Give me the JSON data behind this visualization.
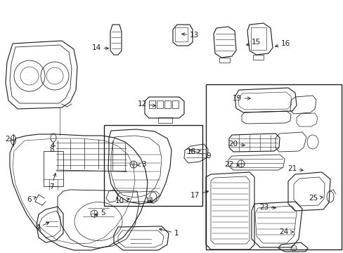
{
  "background_color": "#ffffff",
  "line_color": "#1a1a1a",
  "figsize": [
    4.89,
    3.6
  ],
  "dpi": 100,
  "labels": {
    "1": [
      248,
      332,
      223,
      325,
      "left"
    ],
    "2": [
      14,
      198,
      22,
      200,
      "right"
    ],
    "3": [
      201,
      234,
      192,
      236,
      "left"
    ],
    "4": [
      57,
      324,
      73,
      315,
      "right"
    ],
    "5": [
      143,
      303,
      131,
      307,
      "left"
    ],
    "6": [
      45,
      284,
      55,
      279,
      "right"
    ],
    "7": [
      70,
      266,
      80,
      243,
      "left"
    ],
    "8": [
      70,
      213,
      76,
      203,
      "left"
    ],
    "9": [
      293,
      222,
      266,
      212,
      "left"
    ],
    "10": [
      177,
      286,
      188,
      282,
      "right"
    ],
    "11": [
      207,
      286,
      218,
      283,
      "left"
    ],
    "12": [
      209,
      148,
      225,
      151,
      "right"
    ],
    "13": [
      270,
      50,
      255,
      48,
      "left"
    ],
    "14": [
      144,
      68,
      158,
      69,
      "right"
    ],
    "15": [
      358,
      60,
      347,
      65,
      "left"
    ],
    "16": [
      400,
      62,
      388,
      67,
      "left"
    ],
    "17": [
      284,
      278,
      300,
      271,
      "right"
    ],
    "18": [
      279,
      216,
      289,
      214,
      "right"
    ],
    "19": [
      344,
      140,
      360,
      140,
      "right"
    ],
    "20": [
      338,
      205,
      352,
      207,
      "right"
    ],
    "21": [
      422,
      240,
      435,
      243,
      "right"
    ],
    "22": [
      333,
      234,
      344,
      236,
      "right"
    ],
    "23": [
      382,
      295,
      396,
      296,
      "right"
    ],
    "24": [
      411,
      330,
      421,
      330,
      "right"
    ],
    "25": [
      453,
      282,
      463,
      280,
      "right"
    ]
  }
}
